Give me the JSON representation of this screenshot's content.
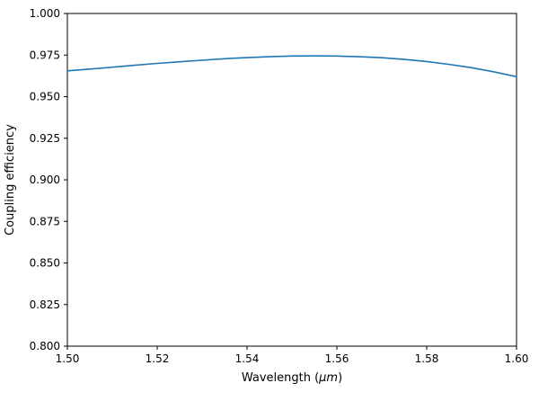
{
  "chart_data": {
    "type": "line",
    "xlabel_parts": [
      "Wavelength (",
      "μm",
      ")"
    ],
    "ylabel": "Coupling efficiency",
    "xlim": [
      1.5,
      1.6
    ],
    "ylim": [
      0.8,
      1.0
    ],
    "xticks": [
      1.5,
      1.52,
      1.54,
      1.56,
      1.58,
      1.6
    ],
    "xtick_labels": [
      "1.50",
      "1.52",
      "1.54",
      "1.56",
      "1.58",
      "1.60"
    ],
    "yticks": [
      0.8,
      0.825,
      0.85,
      0.875,
      0.9,
      0.925,
      0.95,
      0.975,
      1.0
    ],
    "ytick_labels": [
      "0.800",
      "0.825",
      "0.850",
      "0.875",
      "0.900",
      "0.925",
      "0.950",
      "0.975",
      "1.000"
    ],
    "grid": false,
    "legend": null,
    "series": [
      {
        "name": "coupling-efficiency-curve",
        "color": "#1f77b4",
        "x": [
          1.5,
          1.505,
          1.51,
          1.515,
          1.52,
          1.525,
          1.53,
          1.535,
          1.54,
          1.545,
          1.55,
          1.555,
          1.56,
          1.565,
          1.57,
          1.575,
          1.58,
          1.585,
          1.59,
          1.595,
          1.6
        ],
        "y": [
          0.9655,
          0.9666,
          0.9677,
          0.9689,
          0.97,
          0.971,
          0.9719,
          0.9728,
          0.9735,
          0.974,
          0.9744,
          0.9745,
          0.9744,
          0.974,
          0.9734,
          0.9724,
          0.9711,
          0.9694,
          0.9674,
          0.9649,
          0.962
        ]
      }
    ]
  }
}
